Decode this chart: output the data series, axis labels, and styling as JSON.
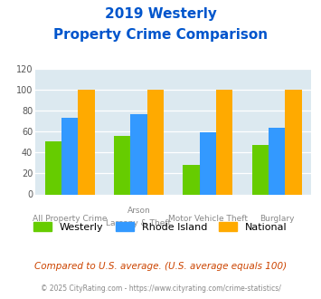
{
  "title_line1": "2019 Westerly",
  "title_line2": "Property Crime Comparison",
  "series": {
    "Westerly": [
      51,
      56,
      28,
      47
    ],
    "Rhode Island": [
      73,
      77,
      59,
      64
    ],
    "National": [
      100,
      100,
      100,
      100
    ]
  },
  "bar_colors": {
    "Westerly": "#66cc00",
    "Rhode Island": "#3399ff",
    "National": "#ffaa00"
  },
  "ylim": [
    0,
    120
  ],
  "yticks": [
    0,
    20,
    40,
    60,
    80,
    100,
    120
  ],
  "plot_background": "#dce9f0",
  "title_color": "#0055cc",
  "footer_text": "Compared to U.S. average. (U.S. average equals 100)",
  "footer_color": "#cc4400",
  "credit_text": "© 2025 CityRating.com - https://www.cityrating.com/crime-statistics/",
  "credit_color": "#888888",
  "bar_width": 0.24
}
